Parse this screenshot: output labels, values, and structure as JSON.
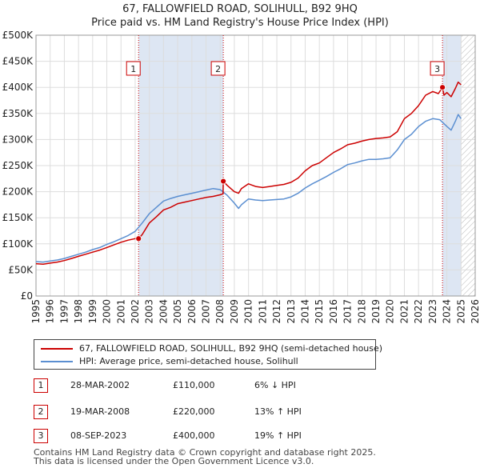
{
  "title_line1": "67, FALLOWFIELD ROAD, SOLIHULL, B92 9HQ",
  "title_line2": "Price paid vs. HM Land Registry's House Price Index (HPI)",
  "colors": {
    "property": "#cc0000",
    "hpi": "#5b8fd1",
    "shade": "#dde6f3",
    "grid": "#dddddd",
    "marker_line": "#cc0000"
  },
  "chart_data": {
    "type": "line",
    "xlim": [
      1995,
      2026
    ],
    "ylim": [
      0,
      500000
    ],
    "grid": true,
    "legend_placement": "below",
    "x_ticks": [
      "1995",
      "1996",
      "1997",
      "1998",
      "1999",
      "2000",
      "2001",
      "2002",
      "2003",
      "2004",
      "2005",
      "2006",
      "2007",
      "2008",
      "2009",
      "2010",
      "2011",
      "2012",
      "2013",
      "2014",
      "2015",
      "2016",
      "2017",
      "2018",
      "2019",
      "2020",
      "2021",
      "2022",
      "2023",
      "2024",
      "2025",
      "2026"
    ],
    "y_ticks": [
      {
        "value": 0,
        "label": "£0"
      },
      {
        "value": 50000,
        "label": "£50K"
      },
      {
        "value": 100000,
        "label": "£100K"
      },
      {
        "value": 150000,
        "label": "£150K"
      },
      {
        "value": 200000,
        "label": "£200K"
      },
      {
        "value": 250000,
        "label": "£250K"
      },
      {
        "value": 300000,
        "label": "£300K"
      },
      {
        "value": 350000,
        "label": "£350K"
      },
      {
        "value": 400000,
        "label": "£400K"
      },
      {
        "value": 450000,
        "label": "£450K"
      },
      {
        "value": 500000,
        "label": "£500K"
      }
    ],
    "shaded_regions": [
      {
        "from": 2002.24,
        "to": 2008.22
      },
      {
        "from": 2023.69,
        "to": 2025.0
      }
    ],
    "hatched_region": {
      "from": 2025.0,
      "to": 2026.0
    },
    "series": [
      {
        "name": "67, FALLOWFIELD ROAD, SOLIHULL, B92 9HQ (semi-detached house)",
        "x": [
          1995.0,
          1995.5,
          1996.0,
          1996.5,
          1997.0,
          1997.5,
          1998.0,
          1998.5,
          1999.0,
          1999.5,
          2000.0,
          2000.5,
          2001.0,
          2001.5,
          2002.0,
          2002.24,
          2002.5,
          2003.0,
          2003.5,
          2004.0,
          2004.5,
          2005.0,
          2005.5,
          2006.0,
          2006.5,
          2007.0,
          2007.5,
          2008.0,
          2008.2,
          2008.22,
          2008.5,
          2009.0,
          2009.3,
          2009.5,
          2010.0,
          2010.5,
          2011.0,
          2011.5,
          2012.0,
          2012.5,
          2013.0,
          2013.5,
          2014.0,
          2014.5,
          2015.0,
          2015.5,
          2016.0,
          2016.5,
          2017.0,
          2017.5,
          2018.0,
          2018.5,
          2019.0,
          2019.5,
          2020.0,
          2020.5,
          2021.0,
          2021.5,
          2022.0,
          2022.5,
          2023.0,
          2023.4,
          2023.69,
          2023.8,
          2024.0,
          2024.3,
          2024.6,
          2024.8,
          2025.0
        ],
        "values": [
          62000,
          61000,
          63000,
          65000,
          68000,
          72000,
          76000,
          80000,
          84000,
          88000,
          93000,
          98000,
          103000,
          107000,
          110000,
          110000,
          118000,
          140000,
          152000,
          165000,
          170000,
          177000,
          180000,
          183000,
          186000,
          189000,
          191000,
          194000,
          196000,
          220000,
          212000,
          200000,
          197000,
          206000,
          215000,
          210000,
          208000,
          210000,
          212000,
          214000,
          218000,
          226000,
          240000,
          250000,
          255000,
          265000,
          275000,
          282000,
          290000,
          293000,
          297000,
          300000,
          302000,
          303000,
          305000,
          315000,
          340000,
          350000,
          365000,
          385000,
          392000,
          388000,
          400000,
          385000,
          390000,
          382000,
          398000,
          410000,
          405000
        ],
        "color": "#cc0000"
      },
      {
        "name": "HPI: Average price, semi-detached house, Solihull",
        "x": [
          1995.0,
          1995.5,
          1996.0,
          1996.5,
          1997.0,
          1997.5,
          1998.0,
          1998.5,
          1999.0,
          1999.5,
          2000.0,
          2000.5,
          2001.0,
          2001.5,
          2002.0,
          2002.5,
          2003.0,
          2003.5,
          2004.0,
          2004.5,
          2005.0,
          2005.5,
          2006.0,
          2006.5,
          2007.0,
          2007.5,
          2008.0,
          2008.5,
          2009.0,
          2009.3,
          2009.5,
          2010.0,
          2010.5,
          2011.0,
          2011.5,
          2012.0,
          2012.5,
          2013.0,
          2013.5,
          2014.0,
          2014.5,
          2015.0,
          2015.5,
          2016.0,
          2016.5,
          2017.0,
          2017.5,
          2018.0,
          2018.5,
          2019.0,
          2019.5,
          2020.0,
          2020.5,
          2021.0,
          2021.5,
          2022.0,
          2022.5,
          2023.0,
          2023.5,
          2024.0,
          2024.3,
          2024.6,
          2024.8,
          2025.0
        ],
        "values": [
          66000,
          65000,
          67000,
          69000,
          72000,
          76000,
          80000,
          84000,
          89000,
          93000,
          99000,
          104000,
          110000,
          116000,
          124000,
          140000,
          158000,
          170000,
          182000,
          187000,
          191000,
          194000,
          197000,
          200000,
          203000,
          206000,
          204000,
          193000,
          178000,
          168000,
          175000,
          186000,
          184000,
          183000,
          184000,
          185000,
          186000,
          190000,
          197000,
          207000,
          215000,
          222000,
          229000,
          237000,
          244000,
          252000,
          255000,
          259000,
          262000,
          262000,
          263000,
          265000,
          280000,
          300000,
          310000,
          325000,
          335000,
          340000,
          338000,
          325000,
          318000,
          335000,
          348000,
          340000
        ],
        "color": "#5b8fd1"
      }
    ],
    "markers": [
      {
        "id": "1",
        "x": 2002.24,
        "value": 110000
      },
      {
        "id": "2",
        "x": 2008.22,
        "value": 220000
      },
      {
        "id": "3",
        "x": 2023.69,
        "value": 400000
      }
    ]
  },
  "legend": {
    "property_label": "67, FALLOWFIELD ROAD, SOLIHULL, B92 9HQ (semi-detached house)",
    "hpi_label": "HPI: Average price, semi-detached house, Solihull"
  },
  "transactions": [
    {
      "id": "1",
      "date": "28-MAR-2002",
      "price": "£110,000",
      "hpi": "6% ↓ HPI"
    },
    {
      "id": "2",
      "date": "19-MAR-2008",
      "price": "£220,000",
      "hpi": "13% ↑ HPI"
    },
    {
      "id": "3",
      "date": "08-SEP-2023",
      "price": "£400,000",
      "hpi": "19% ↑ HPI"
    }
  ],
  "footer_line1": "Contains HM Land Registry data © Crown copyright and database right 2025.",
  "footer_line2": "This data is licensed under the Open Government Licence v3.0."
}
